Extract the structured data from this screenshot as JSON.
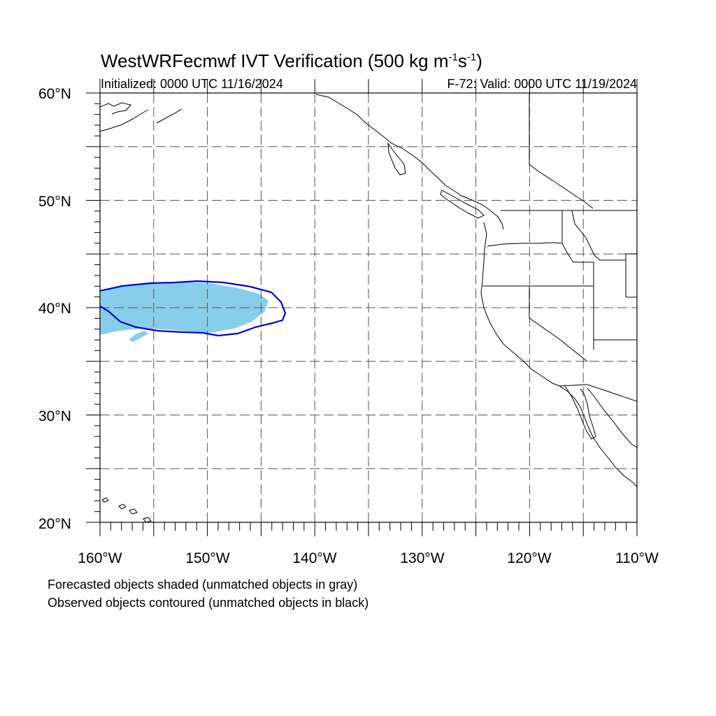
{
  "title": {
    "main": "WestWRFecmwf IVT Verification (500 kg m",
    "sup1": "-1",
    "mid": "s",
    "sup2": "-1",
    "end": ")"
  },
  "subtitle_left": "Initialized: 0000 UTC 11/16/2024",
  "subtitle_right": "F-72: Valid: 0000 UTC 11/19/2024",
  "lat_labels": [
    "60°N",
    "50°N",
    "40°N",
    "30°N",
    "20°N"
  ],
  "lon_labels": [
    "160°W",
    "150°W",
    "140°W",
    "130°W",
    "120°W",
    "110°W"
  ],
  "footnotes": [
    "Forecasted objects shaded (unmatched objects in gray)",
    "Observed objects contoured (unmatched objects in black)"
  ],
  "colors": {
    "forecast_fill": "#87ceeb",
    "observed_contour": "#0000dd",
    "coastline": "#000000",
    "grid": "#555555"
  },
  "map_extent": {
    "lon": [
      -160,
      -110
    ],
    "lat": [
      20,
      60
    ]
  }
}
